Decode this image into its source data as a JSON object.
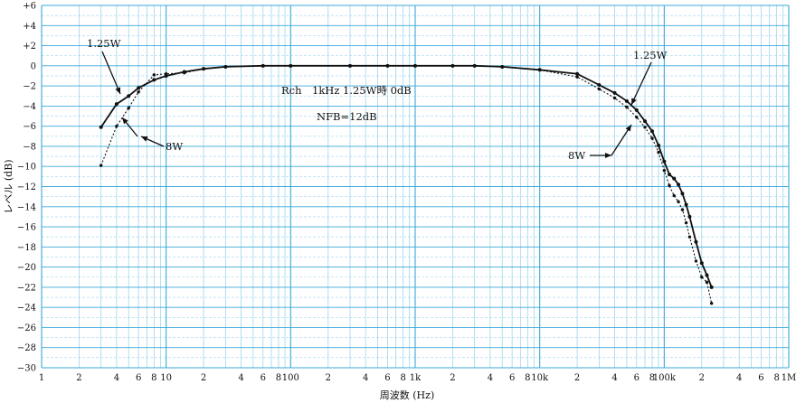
{
  "chart_data": {
    "type": "line",
    "xscale": "log",
    "xlim": [
      1,
      1000000
    ],
    "ylim": [
      -30,
      6
    ],
    "grid": true,
    "colors": {
      "grid_major": "#39a9d9",
      "grid_minor": "#9ed6ee",
      "series": "#111111",
      "background": "#ffffff"
    },
    "xlabel": "周波数 (Hz)",
    "ylabel": "レベル (dB)",
    "x_ticks": [
      {
        "value": 1,
        "label": "1"
      },
      {
        "value": 2,
        "label": "2"
      },
      {
        "value": 4,
        "label": "4"
      },
      {
        "value": 6,
        "label": "6"
      },
      {
        "value": 8,
        "label": "8"
      },
      {
        "value": 10,
        "label": "10"
      },
      {
        "value": 20,
        "label": "2"
      },
      {
        "value": 40,
        "label": "4"
      },
      {
        "value": 60,
        "label": "6"
      },
      {
        "value": 80,
        "label": "8"
      },
      {
        "value": 100,
        "label": "100"
      },
      {
        "value": 200,
        "label": "2"
      },
      {
        "value": 400,
        "label": "4"
      },
      {
        "value": 600,
        "label": "6"
      },
      {
        "value": 800,
        "label": "8"
      },
      {
        "value": 1000,
        "label": "1k"
      },
      {
        "value": 2000,
        "label": "2"
      },
      {
        "value": 4000,
        "label": "4"
      },
      {
        "value": 6000,
        "label": "6"
      },
      {
        "value": 8000,
        "label": "8"
      },
      {
        "value": 10000,
        "label": "10k"
      },
      {
        "value": 20000,
        "label": "2"
      },
      {
        "value": 40000,
        "label": "4"
      },
      {
        "value": 60000,
        "label": "6"
      },
      {
        "value": 80000,
        "label": "8"
      },
      {
        "value": 100000,
        "label": "100k"
      },
      {
        "value": 200000,
        "label": "2"
      },
      {
        "value": 400000,
        "label": "4"
      },
      {
        "value": 600000,
        "label": "6"
      },
      {
        "value": 800000,
        "label": "8"
      },
      {
        "value": 1000000,
        "label": "1M"
      }
    ],
    "y_ticks": [
      {
        "value": 6,
        "label": "+6"
      },
      {
        "value": 4,
        "label": "+4"
      },
      {
        "value": 2,
        "label": "+2"
      },
      {
        "value": 0,
        "label": "0"
      },
      {
        "value": -2,
        "label": "−2"
      },
      {
        "value": -4,
        "label": "−4"
      },
      {
        "value": -6,
        "label": "−6"
      },
      {
        "value": -8,
        "label": "−8"
      },
      {
        "value": -10,
        "label": "−10"
      },
      {
        "value": -12,
        "label": "−12"
      },
      {
        "value": -14,
        "label": "−14"
      },
      {
        "value": -16,
        "label": "−16"
      },
      {
        "value": -18,
        "label": "−18"
      },
      {
        "value": -20,
        "label": "−20"
      },
      {
        "value": -22,
        "label": "−22"
      },
      {
        "value": -24,
        "label": "−24"
      },
      {
        "value": -26,
        "label": "−26"
      },
      {
        "value": -28,
        "label": "−28"
      },
      {
        "value": -30,
        "label": "−30"
      }
    ],
    "series": [
      {
        "name": "1.25W",
        "style": "solid",
        "x": [
          3,
          4,
          5,
          6,
          8,
          10,
          14,
          20,
          30,
          60,
          100,
          300,
          600,
          1000,
          2000,
          3000,
          5000,
          10000,
          20000,
          30000,
          40000,
          50000,
          60000,
          70000,
          80000,
          90000,
          100000,
          110000,
          120000,
          130000,
          140000,
          150000,
          160000,
          180000,
          200000,
          220000,
          240000
        ],
        "y": [
          -6.1,
          -3.8,
          -3.0,
          -2.2,
          -1.4,
          -1.0,
          -0.6,
          -0.3,
          -0.1,
          0.0,
          0.0,
          0.0,
          0.0,
          0.0,
          0.0,
          0.0,
          -0.1,
          -0.4,
          -0.8,
          -1.9,
          -2.7,
          -3.5,
          -4.4,
          -5.5,
          -6.5,
          -7.9,
          -9.5,
          -10.8,
          -11.2,
          -11.8,
          -12.7,
          -13.8,
          -15.0,
          -17.5,
          -19.6,
          -20.8,
          -22.0
        ]
      },
      {
        "name": "8W",
        "style": "dotted",
        "x": [
          3,
          4,
          5,
          6,
          8,
          10,
          14,
          20,
          30,
          60,
          100,
          300,
          600,
          1000,
          2000,
          3000,
          5000,
          10000,
          20000,
          30000,
          40000,
          50000,
          60000,
          70000,
          80000,
          90000,
          100000,
          110000,
          120000,
          130000,
          140000,
          150000,
          160000,
          180000,
          200000,
          220000,
          240000
        ],
        "y": [
          -9.9,
          -6.0,
          -4.2,
          -2.6,
          -0.9,
          -0.8,
          -0.7,
          -0.3,
          -0.1,
          0.0,
          0.0,
          0.0,
          0.0,
          0.0,
          0.0,
          0.0,
          -0.1,
          -0.4,
          -1.1,
          -2.3,
          -3.2,
          -4.1,
          -5.1,
          -6.1,
          -7.2,
          -8.6,
          -10.4,
          -11.9,
          -12.9,
          -13.5,
          -14.3,
          -15.6,
          -17.0,
          -19.4,
          -21.0,
          -21.5,
          -23.6
        ]
      }
    ],
    "annotations": [
      {
        "text": "Rch　1kHz  1.25W時 0dB"
      },
      {
        "text": "NFB=12dB"
      },
      {
        "text": "1.25W",
        "series": "1.25W",
        "side": "low"
      },
      {
        "text": "8W",
        "series": "8W",
        "side": "low"
      },
      {
        "text": "1.25W",
        "series": "1.25W",
        "side": "high"
      },
      {
        "text": "8W",
        "series": "8W",
        "side": "high"
      }
    ]
  }
}
